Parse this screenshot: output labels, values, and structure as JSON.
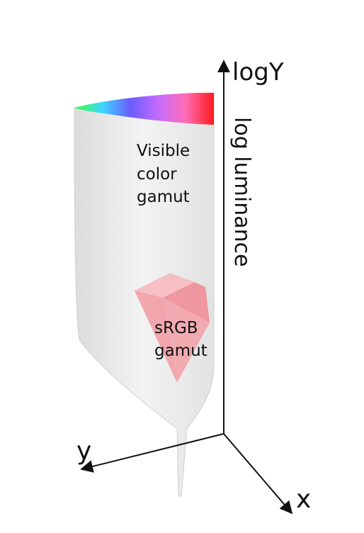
{
  "axes": {
    "vertical": "logY",
    "vertical_title": "log luminance",
    "y": "y",
    "x": "x"
  },
  "labels": {
    "visible": [
      "Visible",
      "color",
      "gamut"
    ],
    "srgb": [
      "sRGB",
      "gamut"
    ]
  }
}
